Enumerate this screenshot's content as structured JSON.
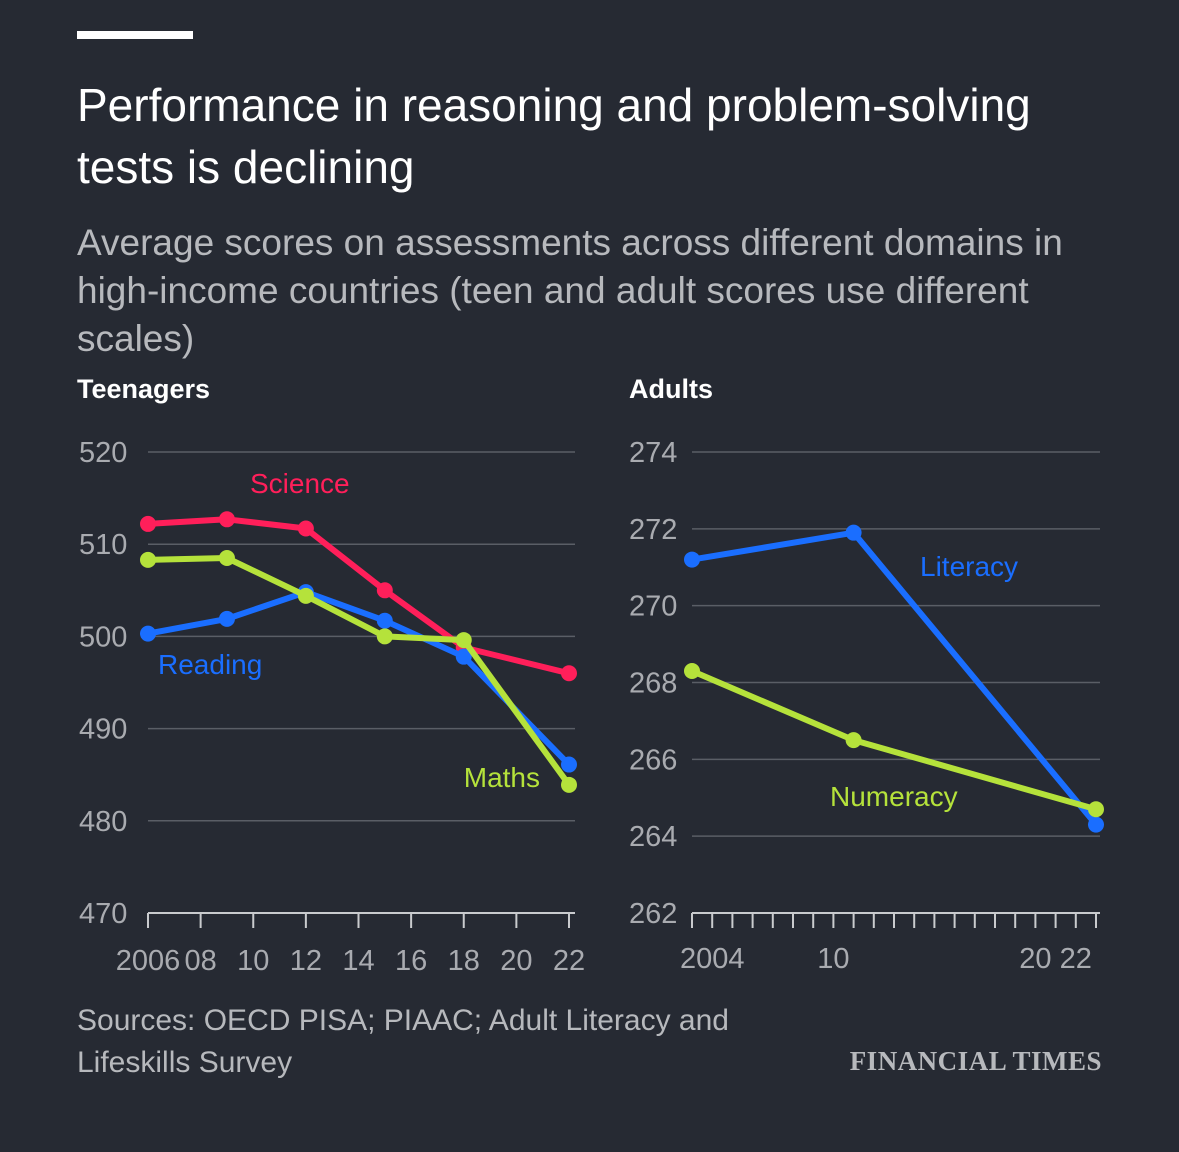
{
  "header": {
    "title": "Performance in reasoning and problem-solving tests is declining",
    "subtitle": "Average scores on assessments across different domains in high-income countries (teen and adult scores use different scales)"
  },
  "footer": {
    "source": "Sources: OECD PISA; PIAAC; Adult Literacy and Lifeskills Survey",
    "brand": "FINANCIAL TIMES"
  },
  "colors": {
    "background": "#262a33",
    "grid": "#5a5e66",
    "axis_text": "#a9abb0",
    "science": "#ff1f5a",
    "reading": "#1a6eff",
    "maths": "#b5e23b",
    "literacy": "#1a6eff",
    "numeracy": "#b5e23b"
  },
  "chart_data": [
    {
      "type": "line",
      "title": "Teenagers",
      "xlabel": "",
      "ylabel": "",
      "xlim": [
        2006,
        2022
      ],
      "ylim": [
        470,
        520
      ],
      "yticks": [
        470,
        480,
        490,
        500,
        510,
        520
      ],
      "xticks": [
        2006,
        2008,
        2010,
        2012,
        2014,
        2016,
        2018,
        2020,
        2022
      ],
      "xtick_labels": [
        "2006",
        "08",
        "10",
        "12",
        "14",
        "16",
        "18",
        "20",
        "22"
      ],
      "series": [
        {
          "name": "Science",
          "color": "#ff1f5a",
          "x": [
            2006,
            2009,
            2012,
            2015,
            2018,
            2022
          ],
          "y": [
            512.2,
            512.7,
            511.7,
            505.0,
            498.8,
            496.0
          ]
        },
        {
          "name": "Reading",
          "color": "#1a6eff",
          "x": [
            2006,
            2009,
            2012,
            2015,
            2018,
            2022
          ],
          "y": [
            500.3,
            501.9,
            504.8,
            501.7,
            497.8,
            486.1
          ]
        },
        {
          "name": "Maths",
          "color": "#b5e23b",
          "x": [
            2006,
            2009,
            2012,
            2015,
            2018,
            2022
          ],
          "y": [
            508.3,
            508.5,
            504.4,
            500.0,
            499.6,
            483.9
          ]
        }
      ]
    },
    {
      "type": "line",
      "title": "Adults",
      "xlabel": "",
      "ylabel": "",
      "xlim": [
        2003,
        2023
      ],
      "ylim": [
        262,
        274
      ],
      "yticks": [
        262,
        264,
        266,
        268,
        270,
        272,
        274
      ],
      "xticks": [
        2003,
        2004,
        2005,
        2006,
        2007,
        2008,
        2009,
        2010,
        2011,
        2012,
        2013,
        2014,
        2015,
        2016,
        2017,
        2018,
        2019,
        2020,
        2021,
        2022,
        2023
      ],
      "xtick_labels_at": [
        2004,
        2010,
        2020,
        2022
      ],
      "xtick_labels": [
        "2004",
        "10",
        "20",
        "22"
      ],
      "series": [
        {
          "name": "Literacy",
          "color": "#1a6eff",
          "x": [
            2003,
            2011,
            2023
          ],
          "y": [
            271.2,
            271.9,
            264.3
          ]
        },
        {
          "name": "Numeracy",
          "color": "#b5e23b",
          "x": [
            2003,
            2011,
            2023
          ],
          "y": [
            268.3,
            266.5,
            264.7
          ]
        }
      ]
    }
  ]
}
